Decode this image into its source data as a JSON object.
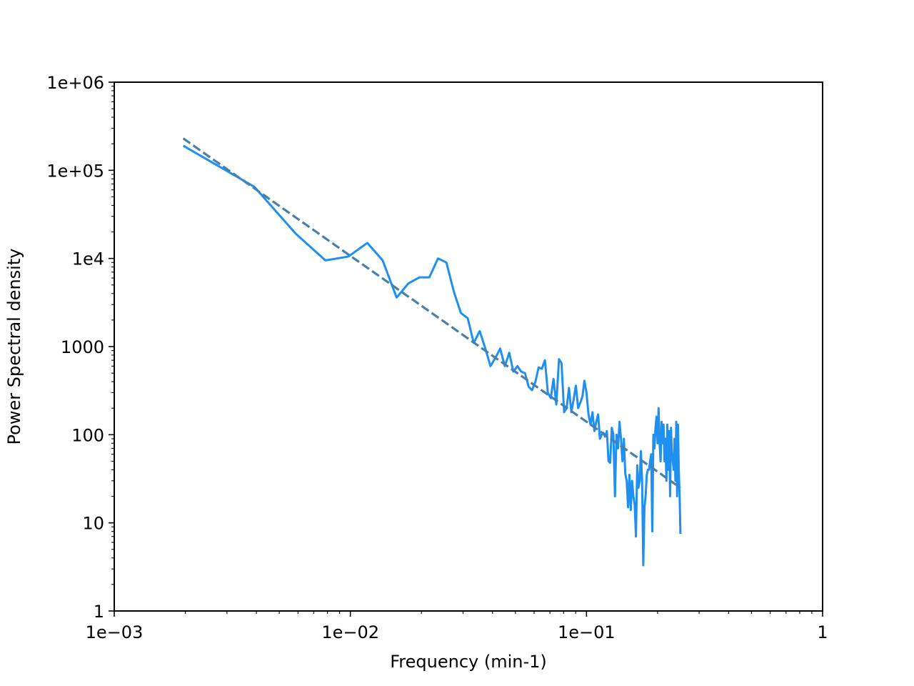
{
  "chart_data": {
    "type": "line",
    "title": "",
    "xlabel": "Frequency (min-1)",
    "ylabel": "Power Spectral density",
    "x_scale": "log",
    "y_scale": "log",
    "xlim": [
      0.001,
      1
    ],
    "ylim": [
      1,
      1000000
    ],
    "grid": false,
    "legend": "none",
    "x_ticks": [
      {
        "value": 0.001,
        "label": "1e−03"
      },
      {
        "value": 0.01,
        "label": "1e−02"
      },
      {
        "value": 0.1,
        "label": "1e−01"
      },
      {
        "value": 1,
        "label": "1"
      }
    ],
    "y_ticks": [
      {
        "value": 1,
        "label": "1"
      },
      {
        "value": 10,
        "label": "10"
      },
      {
        "value": 100,
        "label": "100"
      },
      {
        "value": 1000,
        "label": "1000"
      },
      {
        "value": 10000,
        "label": "1e4"
      },
      {
        "value": 100000,
        "label": "1e+05"
      },
      {
        "value": 1000000,
        "label": "1e+06"
      }
    ],
    "series": [
      {
        "color": "#1f8ff0",
        "style": "solid",
        "x": [
          0.00196,
          0.00392,
          0.00588,
          0.00784,
          0.0098,
          0.0118,
          0.0137,
          0.0157,
          0.0176,
          0.0196,
          0.0216,
          0.0235,
          0.0255,
          0.0275,
          0.0294,
          0.0314,
          0.0333,
          0.0353,
          0.0373,
          0.0392,
          0.0412,
          0.0431,
          0.0451,
          0.0471,
          0.049,
          0.051,
          0.0529,
          0.0549,
          0.0569,
          0.0588,
          0.0608,
          0.0627,
          0.0647,
          0.0667,
          0.0686,
          0.0706,
          0.0725,
          0.0745,
          0.0765,
          0.0784,
          0.0804,
          0.0824,
          0.0843,
          0.0863,
          0.0882,
          0.0902,
          0.0922,
          0.0941,
          0.0961,
          0.098,
          0.1,
          0.102,
          0.104,
          0.106,
          0.108,
          0.11,
          0.112,
          0.114,
          0.116,
          0.118,
          0.12,
          0.122,
          0.124,
          0.126,
          0.128,
          0.13,
          0.132,
          0.134,
          0.136,
          0.138,
          0.14,
          0.142,
          0.144,
          0.146,
          0.148,
          0.15,
          0.152,
          0.154,
          0.156,
          0.158,
          0.16,
          0.162,
          0.164,
          0.166,
          0.168,
          0.17,
          0.172,
          0.174,
          0.176,
          0.178,
          0.18,
          0.182,
          0.184,
          0.186,
          0.188,
          0.19,
          0.192,
          0.194,
          0.196,
          0.198,
          0.2,
          0.202,
          0.204,
          0.206,
          0.208,
          0.21,
          0.212,
          0.214,
          0.216,
          0.218,
          0.22,
          0.222,
          0.224,
          0.226,
          0.228,
          0.23,
          0.232,
          0.234,
          0.236,
          0.238,
          0.24,
          0.242,
          0.244,
          0.246,
          0.248,
          0.25
        ],
        "y": [
          190000,
          65000,
          19000,
          9500,
          10500,
          15000,
          9500,
          3600,
          5200,
          6100,
          6100,
          10000,
          9000,
          4100,
          2400,
          2100,
          1100,
          1500,
          950,
          600,
          750,
          950,
          600,
          850,
          520,
          600,
          520,
          500,
          350,
          320,
          400,
          580,
          560,
          700,
          300,
          260,
          430,
          220,
          720,
          650,
          180,
          200,
          340,
          180,
          250,
          360,
          200,
          230,
          270,
          410,
          300,
          170,
          130,
          180,
          110,
          140,
          170,
          90,
          100,
          105,
          95,
          110,
          50,
          48,
          120,
          100,
          20,
          100,
          70,
          140,
          90,
          50,
          90,
          36,
          30,
          15,
          35,
          14,
          30,
          20,
          16,
          7,
          45,
          25,
          30,
          65,
          30,
          3.3,
          15,
          20,
          35,
          40,
          40,
          50,
          60,
          8,
          100,
          70,
          120,
          160,
          80,
          200,
          80,
          50,
          140,
          80,
          130,
          50,
          90,
          30,
          130,
          40,
          110,
          20,
          120,
          60,
          50,
          40,
          90,
          30,
          140,
          20,
          130,
          40,
          20,
          7.5
        ]
      },
      {
        "color": "#4a7fa8",
        "style": "dashed",
        "x": [
          0.00196,
          0.25
        ],
        "y": [
          230000,
          25
        ]
      }
    ]
  }
}
